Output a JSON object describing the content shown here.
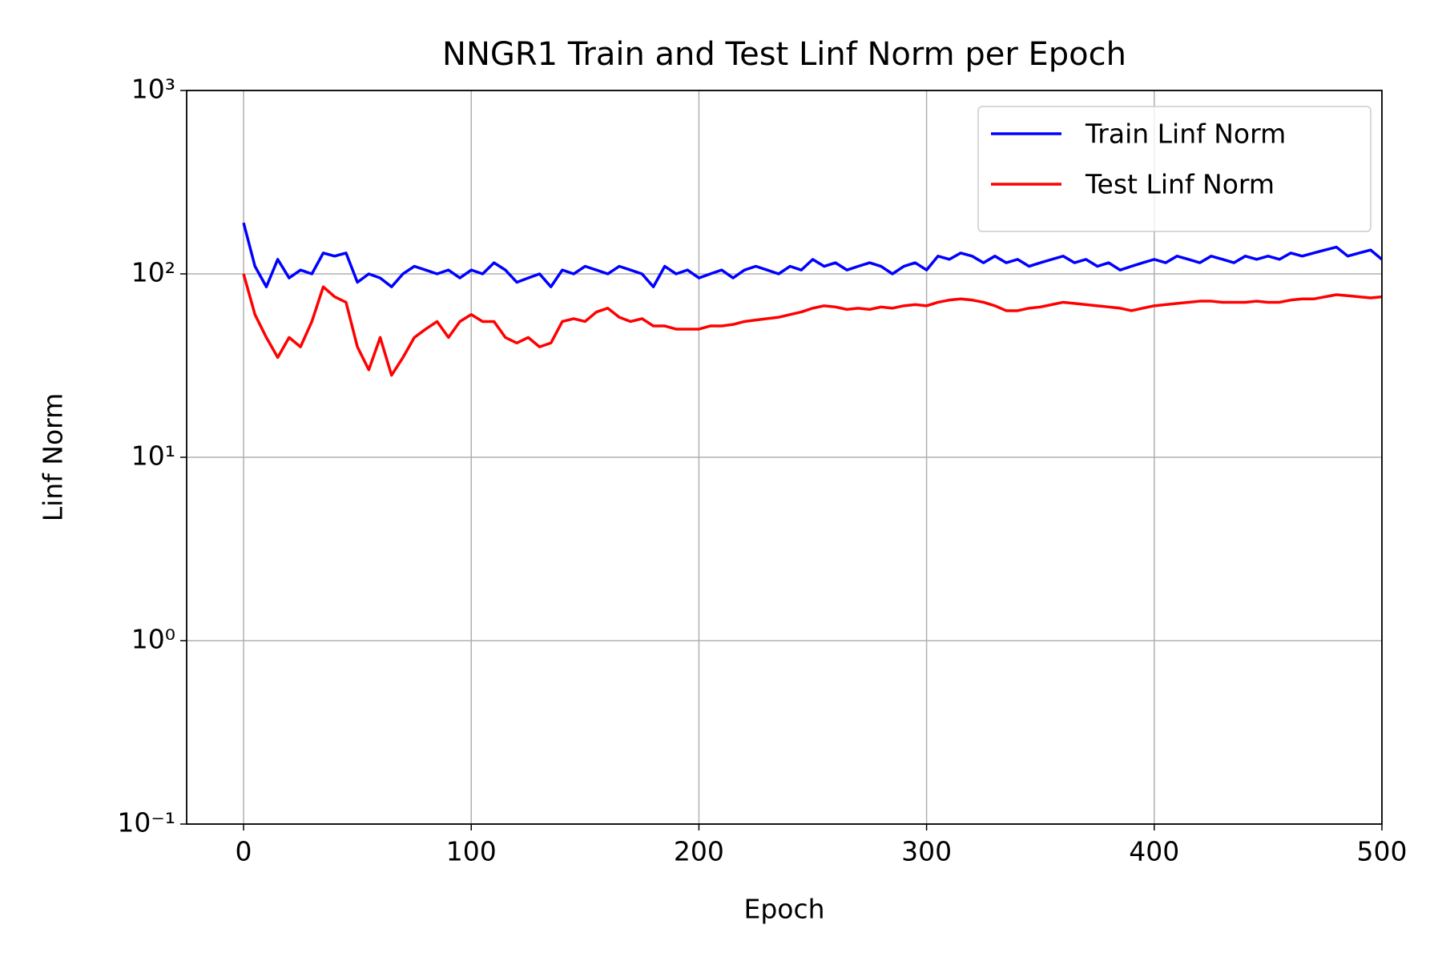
{
  "chart_data": {
    "type": "line",
    "title": "NNGR1 Train and Test Linf Norm per Epoch",
    "x_label": "Epoch",
    "y_label": "Linf Norm",
    "log_y": true,
    "grid": true,
    "legend": "upper right",
    "xlim": [
      -25,
      500
    ],
    "xticks": [
      0,
      100,
      200,
      300,
      400,
      500
    ],
    "ylim": [
      0.1,
      1000
    ],
    "yticks": [
      {
        "value": 0.1,
        "label": "10⁻¹"
      },
      {
        "value": 1,
        "label": "10⁰"
      },
      {
        "value": 10,
        "label": "10¹"
      },
      {
        "value": 100,
        "label": "10²"
      },
      {
        "value": 1000,
        "label": "10³"
      }
    ],
    "x": [
      0,
      5,
      10,
      15,
      20,
      25,
      30,
      35,
      40,
      45,
      50,
      55,
      60,
      65,
      70,
      75,
      80,
      85,
      90,
      95,
      100,
      105,
      110,
      115,
      120,
      125,
      130,
      135,
      140,
      145,
      150,
      155,
      160,
      165,
      170,
      175,
      180,
      185,
      190,
      195,
      200,
      205,
      210,
      215,
      220,
      225,
      230,
      235,
      240,
      245,
      250,
      255,
      260,
      265,
      270,
      275,
      280,
      285,
      290,
      295,
      300,
      305,
      310,
      315,
      320,
      325,
      330,
      335,
      340,
      345,
      350,
      355,
      360,
      365,
      370,
      375,
      380,
      385,
      390,
      395,
      400,
      405,
      410,
      415,
      420,
      425,
      430,
      435,
      440,
      445,
      450,
      455,
      460,
      465,
      470,
      475,
      480,
      485,
      490,
      495,
      500
    ],
    "series": [
      {
        "name": "Train Linf Norm",
        "color": "#0000ff",
        "values": [
          190,
          110,
          85,
          120,
          95,
          105,
          100,
          130,
          125,
          130,
          90,
          100,
          95,
          85,
          100,
          110,
          105,
          100,
          105,
          95,
          105,
          100,
          115,
          105,
          90,
          95,
          100,
          85,
          105,
          100,
          110,
          105,
          100,
          110,
          105,
          100,
          85,
          110,
          100,
          105,
          95,
          100,
          105,
          95,
          105,
          110,
          105,
          100,
          110,
          105,
          120,
          110,
          115,
          105,
          110,
          115,
          110,
          100,
          110,
          115,
          105,
          125,
          120,
          130,
          125,
          115,
          125,
          115,
          120,
          110,
          115,
          120,
          125,
          115,
          120,
          110,
          115,
          105,
          110,
          115,
          120,
          115,
          125,
          120,
          115,
          125,
          120,
          115,
          125,
          120,
          125,
          120,
          130,
          125,
          130,
          135,
          140,
          125,
          130,
          135,
          120
        ]
      },
      {
        "name": "Test Linf Norm",
        "color": "#ff0000",
        "values": [
          100,
          60,
          45,
          35,
          45,
          40,
          55,
          85,
          75,
          70,
          40,
          30,
          45,
          28,
          35,
          45,
          50,
          55,
          45,
          55,
          60,
          55,
          55,
          45,
          42,
          45,
          40,
          42,
          55,
          57,
          55,
          62,
          65,
          58,
          55,
          57,
          52,
          52,
          50,
          50,
          50,
          52,
          52,
          53,
          55,
          56,
          57,
          58,
          60,
          62,
          65,
          67,
          66,
          64,
          65,
          64,
          66,
          65,
          67,
          68,
          67,
          70,
          72,
          73,
          72,
          70,
          67,
          63,
          63,
          65,
          66,
          68,
          70,
          69,
          68,
          67,
          66,
          65,
          63,
          65,
          67,
          68,
          69,
          70,
          71,
          71,
          70,
          70,
          70,
          71,
          70,
          70,
          72,
          73,
          73,
          75,
          77,
          76,
          75,
          74,
          75
        ]
      }
    ]
  }
}
